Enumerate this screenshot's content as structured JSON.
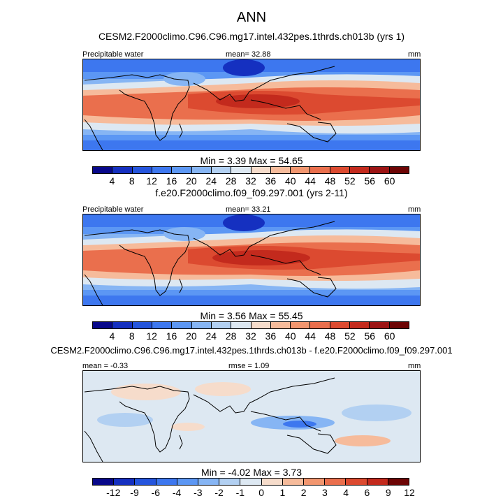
{
  "title": "ANN",
  "palette_abs": [
    "#08088a",
    "#1530c0",
    "#2555dd",
    "#3d77ef",
    "#5c97f4",
    "#86b5f4",
    "#b2d0f2",
    "#dde8f2",
    "#f6dccb",
    "#f6bb9b",
    "#f2966f",
    "#ea6f4d",
    "#dc4a30",
    "#c32a1d",
    "#9c1414",
    "#6d0505"
  ],
  "palette_diff": [
    "#08088a",
    "#1530c0",
    "#2555dd",
    "#3d77ef",
    "#5c97f4",
    "#86b5f4",
    "#b2d0f2",
    "#dde8f2",
    "#f6dccb",
    "#f6bb9b",
    "#f2966f",
    "#ea6f4d",
    "#dc4a30",
    "#c32a1d",
    "#6d0505"
  ],
  "chart_data": [
    {
      "type": "heatmap",
      "title": "CESM2.F2000climo.C96.C96.mg17.intel.432pes.1thrds.ch013b (yrs 1)",
      "variable": "Precipitable water",
      "mean_label": "mean=",
      "mean": "32.88",
      "units": "mm",
      "min_label": "Min =",
      "min": "3.39",
      "max_label": "Max =",
      "max": "54.65",
      "colorbar_levels": [
        "4",
        "8",
        "12",
        "16",
        "20",
        "24",
        "28",
        "32",
        "36",
        "40",
        "44",
        "48",
        "52",
        "56",
        "60"
      ]
    },
    {
      "type": "heatmap",
      "title": "f.e20.F2000climo.f09_f09.297.001 (yrs 2-11)",
      "variable": "Precipitable water",
      "mean_label": "mean=",
      "mean": "33.21",
      "units": "mm",
      "min_label": "Min =",
      "min": "3.56",
      "max_label": "Max =",
      "max": "55.45",
      "colorbar_levels": [
        "4",
        "8",
        "12",
        "16",
        "20",
        "24",
        "28",
        "32",
        "36",
        "40",
        "44",
        "48",
        "52",
        "56",
        "60"
      ]
    },
    {
      "type": "heatmap",
      "title": "CESM2.F2000climo.C96.C96.mg17.intel.432pes.1thrds.ch013b - f.e20.F2000climo.f09_f09.297.001",
      "mean_label": "mean =",
      "mean": "-0.33",
      "rmse_label": "rmse =",
      "rmse": "1.09",
      "units": "mm",
      "min_label": "Min =",
      "min": "-4.02",
      "max_label": "Max =",
      "max": "3.73",
      "colorbar_levels": [
        "-12",
        "-9",
        "-6",
        "-4",
        "-3",
        "-2",
        "-1",
        "0",
        "1",
        "2",
        "3",
        "4",
        "6",
        "9",
        "12"
      ]
    }
  ]
}
